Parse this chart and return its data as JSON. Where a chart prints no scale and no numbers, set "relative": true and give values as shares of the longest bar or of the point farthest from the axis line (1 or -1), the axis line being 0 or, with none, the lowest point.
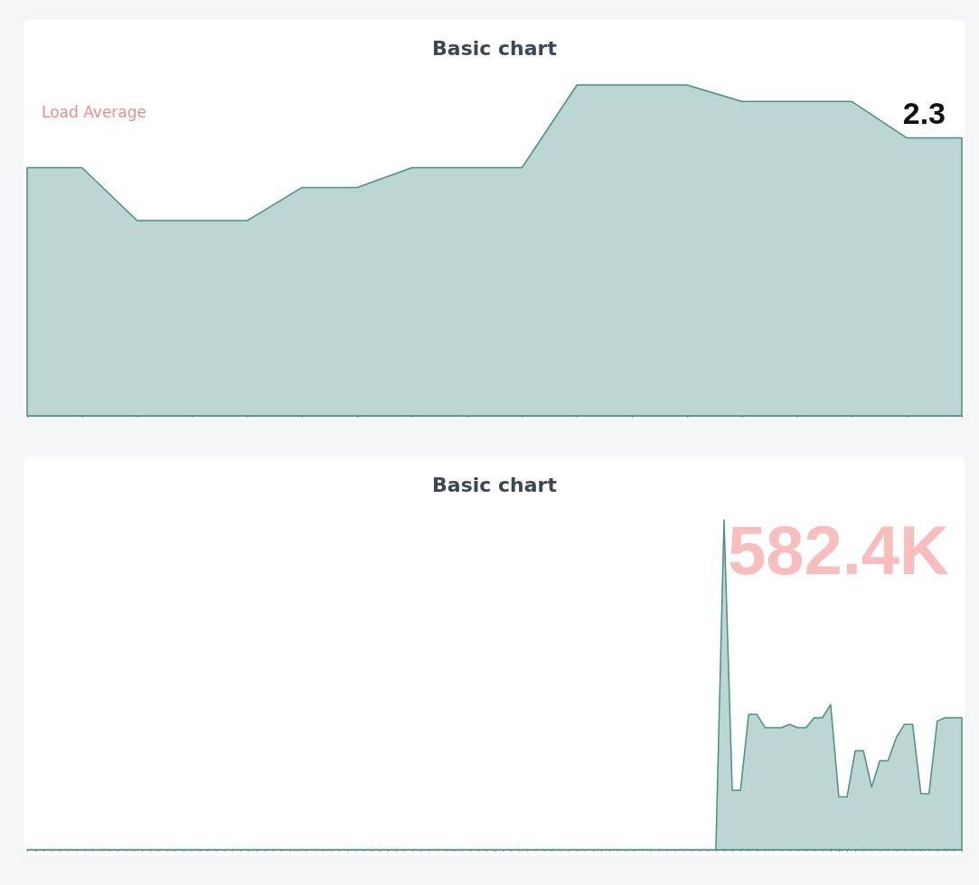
{
  "chart_data": [
    {
      "type": "area",
      "title": "Basic chart",
      "relative": true,
      "annotations": [
        "Load Average",
        "2.3"
      ],
      "categories": [
        null,
        null,
        null,
        null,
        null,
        null,
        null,
        null,
        null,
        null,
        null,
        null,
        null,
        null,
        null,
        null,
        null,
        null
      ],
      "series": [
        {
          "color": "#4a8f88",
          "values": [
            0.75,
            0.75,
            0.59,
            0.59,
            0.59,
            0.69,
            0.69,
            0.75,
            0.75,
            0.75,
            1,
            1,
            1,
            0.95,
            0.95,
            0.95,
            0.84,
            0.84
          ]
        }
      ]
    },
    {
      "type": "area",
      "title": "Basic chart",
      "relative": true,
      "annotations": [
        "582.4K"
      ],
      "categories": [
        null,
        null,
        null,
        null,
        null,
        null,
        null,
        null,
        null,
        null,
        null,
        null,
        null,
        null,
        null,
        null,
        null,
        null,
        null,
        null,
        null,
        null,
        null,
        null,
        null,
        null,
        null,
        null,
        null,
        null,
        null,
        null,
        null,
        null,
        null,
        null,
        null,
        null,
        null,
        null,
        null,
        null,
        null,
        null,
        null,
        null,
        null,
        null,
        null,
        null,
        null,
        null,
        null,
        null,
        null,
        null,
        null,
        null,
        null,
        null,
        null,
        null,
        null,
        null,
        null,
        null,
        null,
        null,
        null,
        null,
        null,
        null,
        null,
        null,
        null,
        null,
        null,
        null,
        null,
        null,
        null,
        null,
        null,
        null,
        null,
        null,
        null,
        null,
        null,
        null,
        null,
        null,
        null,
        null,
        null,
        null,
        null,
        null,
        null,
        null,
        null,
        null,
        null,
        null,
        null,
        null,
        null,
        null,
        null,
        null,
        null,
        null,
        null,
        null,
        null
      ],
      "series": [
        {
          "color": "#4a8f88",
          "values": [
            0,
            0,
            0,
            0,
            0,
            0,
            0,
            0,
            0,
            0,
            0,
            0,
            0,
            0,
            0,
            0,
            0,
            0,
            0,
            0,
            0,
            0,
            0,
            0,
            0,
            0,
            0,
            0,
            0,
            0,
            0,
            0,
            0,
            0,
            0,
            0,
            0,
            0,
            0,
            0,
            0,
            0,
            0,
            0,
            0,
            0,
            0,
            0,
            0,
            0,
            0,
            0,
            0,
            0,
            0,
            0,
            0,
            0,
            0,
            0,
            0,
            0,
            0,
            0,
            0,
            0,
            0,
            0,
            0,
            0,
            0,
            0,
            0,
            0,
            0,
            0,
            0,
            0,
            0,
            0,
            0,
            0,
            0,
            0,
            0,
            1,
            0.18,
            0.18,
            0.41,
            0.41,
            0.37,
            0.37,
            0.37,
            0.38,
            0.37,
            0.37,
            0.4,
            0.4,
            0.44,
            0.16,
            0.16,
            0.3,
            0.3,
            0.19,
            0.27,
            0.27,
            0.34,
            0.38,
            0.38,
            0.17,
            0.17,
            0.39,
            0.4,
            0.4,
            0.4
          ]
        }
      ]
    }
  ]
}
